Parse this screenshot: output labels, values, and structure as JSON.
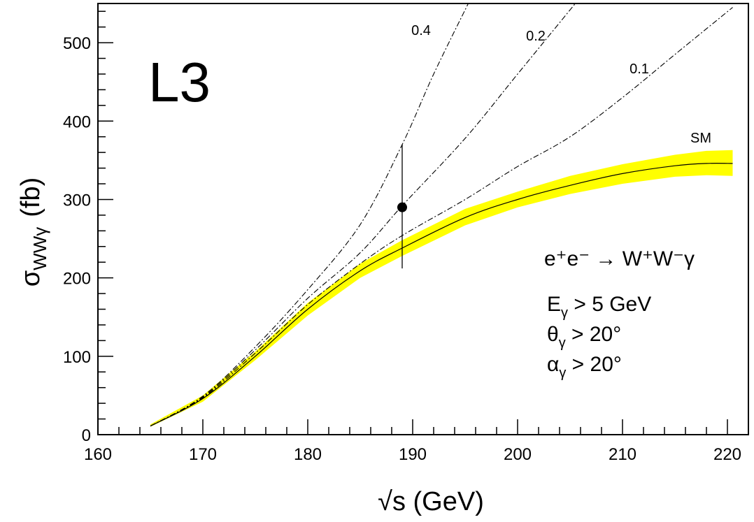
{
  "chart_data": {
    "type": "line",
    "experiment_label": "L3",
    "xlabel": "√s  (GeV)",
    "ylabel": {
      "symbol": "σ",
      "subscript": "WWγ",
      "unit": "(fb)"
    },
    "xlim": [
      160,
      222
    ],
    "ylim": [
      0,
      550
    ],
    "xticks": [
      160,
      170,
      180,
      190,
      200,
      210,
      220
    ],
    "yticks": [
      0,
      100,
      200,
      300,
      400,
      500
    ],
    "process": "e⁺e⁻ → W⁺W⁻γ",
    "cuts": [
      {
        "var": "E",
        "sub": "γ",
        "rel": " > 5 GeV"
      },
      {
        "var": "θ",
        "sub": "γ",
        "rel": " > 20°"
      },
      {
        "var": "α",
        "sub": "γ",
        "rel": " > 20°"
      }
    ],
    "band": {
      "color": "#ffff00",
      "x": [
        165,
        170,
        175,
        180,
        185,
        189,
        195,
        200,
        205,
        210,
        215,
        218,
        220.5
      ],
      "lower": [
        10,
        42,
        95,
        152,
        200,
        228,
        267,
        290,
        307,
        320,
        329,
        331,
        330
      ],
      "upper": [
        13,
        50,
        106,
        168,
        218,
        248,
        288,
        310,
        330,
        345,
        357,
        362,
        363
      ]
    },
    "series": [
      {
        "name": "SM",
        "style": "solid",
        "x": [
          165,
          170,
          175,
          180,
          185,
          189,
          195,
          200,
          205,
          210,
          215,
          218,
          220.5
        ],
        "y": [
          11,
          46,
          100,
          160,
          209,
          238,
          277,
          300,
          318,
          333,
          343,
          346,
          346
        ]
      },
      {
        "name": "0.1",
        "style": "dashdot",
        "x": [
          165,
          170,
          175,
          180,
          185,
          189,
          195,
          200,
          205,
          210,
          215,
          220.5
        ],
        "y": [
          11,
          47,
          104,
          166,
          218,
          254,
          300,
          342,
          380,
          430,
          485,
          545
        ]
      },
      {
        "name": "0.2",
        "style": "dashdot",
        "x": [
          165,
          170,
          175,
          180,
          185,
          189,
          195,
          200,
          205.5
        ],
        "y": [
          11,
          48,
          108,
          174,
          232,
          292,
          378,
          460,
          550
        ]
      },
      {
        "name": "0.4",
        "style": "dashdot",
        "x": [
          165,
          170,
          175,
          180,
          185,
          189,
          192,
          195.3
        ],
        "y": [
          11,
          49,
          112,
          185,
          268,
          370,
          460,
          550
        ]
      }
    ],
    "data_points": [
      {
        "x": 189,
        "y": 290,
        "yerr_low": 212,
        "yerr_high": 370
      }
    ]
  }
}
